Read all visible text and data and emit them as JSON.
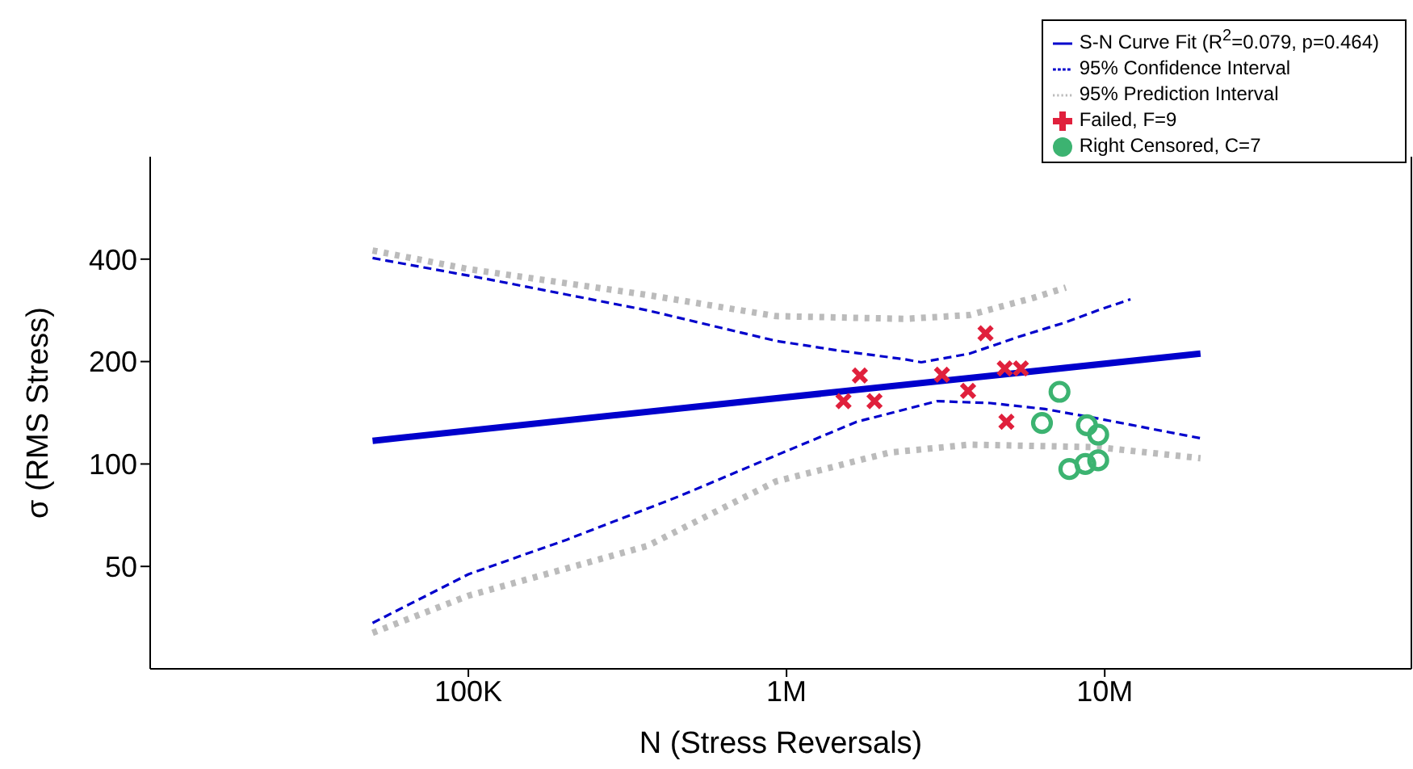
{
  "chart_data": {
    "type": "line",
    "xlabel": "N (Stress Reversals)",
    "ylabel": "σ (RMS Stress)",
    "log": "xy",
    "xlim": [
      10000,
      92000000
    ],
    "ylim": [
      25,
      800
    ],
    "xticks": [
      {
        "value": 100000,
        "label": "100K"
      },
      {
        "value": 1000000,
        "label": "1M"
      },
      {
        "value": 10000000,
        "label": "10M"
      }
    ],
    "yticks": [
      50,
      100,
      200,
      400
    ],
    "legend": "top right",
    "series": [
      {
        "name": "S-N Curve Fit (R$^{2}$=0.079, p=0.464)",
        "line_style": "solid",
        "color": "#0000cc",
        "x": [
          50000,
          20000000
        ],
        "values": [
          117,
          211
        ]
      },
      {
        "name": "95% Confidence Interval",
        "line_style": "dashed",
        "color": "#0000cc",
        "x": [
          50000,
          113700,
          364600,
          927000,
          1479000,
          2360000,
          2650000,
          3760000,
          5330000,
          7550000,
          9540000,
          12050000
        ],
        "values": [
          403,
          350,
          283,
          230,
          215,
          203,
          199,
          211,
          236,
          261,
          283,
          305
        ]
      },
      {
        "line_style": "dashed",
        "color": "#0000cc",
        "x": [
          50000,
          100000,
          203700,
          460000,
          927000,
          1660000,
          2970000,
          4370000,
          6500000,
          9540000,
          20000000
        ],
        "values": [
          34.1,
          47.4,
          59.9,
          80.4,
          106,
          133,
          153,
          151,
          145,
          136,
          119
        ]
      },
      {
        "name": "95% Prediction Interval",
        "line_style": "dotted",
        "color": "#bbbbbb",
        "x": [
          50000,
          100000,
          364600,
          927000,
          2360000,
          3760000,
          5980000,
          7550000
        ],
        "values": [
          424,
          374,
          314,
          272,
          267,
          274,
          308,
          330
        ]
      },
      {
        "line_style": "dotted",
        "color": "#bbbbbb",
        "x": [
          50000,
          100000,
          364600,
          927000,
          2100000,
          3760000,
          9540000,
          20000000
        ],
        "values": [
          31.9,
          41.0,
          57.4,
          88.9,
          108,
          114,
          112,
          104
        ]
      },
      {
        "name": "Failed, F=9",
        "type": "scatter",
        "marker": "cross",
        "color": "#e0203c",
        "x": [
          4220000,
          1700000,
          3080000,
          4850000,
          5450000,
          1510000,
          1890000,
          3720000,
          4910000
        ],
        "values": [
          242,
          182,
          183,
          191,
          191,
          153,
          153,
          164,
          133
        ]
      },
      {
        "name": "Right Censored, C=7",
        "type": "scatter",
        "marker": "circle",
        "color": "#3cb371",
        "x": [
          7210000,
          6350000,
          8790000,
          9540000,
          7740000,
          8690000,
          9540000
        ],
        "values": [
          163,
          132,
          130,
          122,
          96.7,
          100,
          102.5
        ]
      }
    ]
  }
}
